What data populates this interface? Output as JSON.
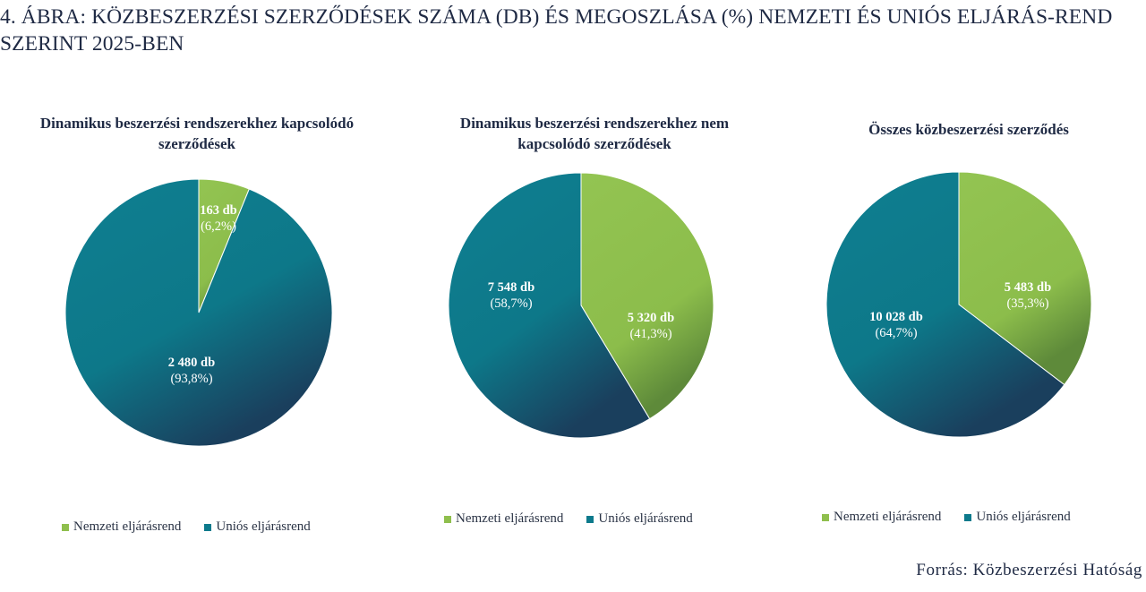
{
  "figure_title": "4. ÁBRA: KÖZBESZERZÉSI SZERZŐDÉSEK SZÁMA (DB) ÉS MEGOSZLÁSA (%) NEMZETI ÉS UNIÓS ELJÁRÁS-REND SZERINT 2025-BEN",
  "source": "Forrás: Közbeszerzési Hatóság",
  "colors": {
    "nemzeti": "#8fbf4d",
    "unios": "#0d7a8c",
    "unios_dark": "#183d5c"
  },
  "chart_data": [
    {
      "type": "pie",
      "title": "Dinamikus beszerzési rendszerekhez kapcsolódó  szerződések",
      "slices": [
        {
          "name": "Nemzeti eljárásrend",
          "value": 163,
          "value_label": "163 db",
          "pct_label": "(6,2%)"
        },
        {
          "name": "Uniós eljárásrend",
          "value": 2480,
          "value_label": "2 480 db",
          "pct_label": "(93,8%)"
        }
      ],
      "legend": [
        "Nemzeti eljárásrend",
        "Uniós eljárásrend"
      ],
      "legend_position": "bottom"
    },
    {
      "type": "pie",
      "title": "Dinamikus beszerzési rendszerekhez nem kapcsolódó szerződések",
      "slices": [
        {
          "name": "Nemzeti eljárásrend",
          "value": 5320,
          "value_label": "5 320 db",
          "pct_label": "(41,3%)"
        },
        {
          "name": "Uniós eljárásrend",
          "value": 7548,
          "value_label": "7 548 db",
          "pct_label": "(58,7%)"
        }
      ],
      "legend": [
        "Nemzeti eljárásrend",
        "Uniós eljárásrend"
      ],
      "legend_position": "bottom"
    },
    {
      "type": "pie",
      "title": "Összes közbeszerzési szerződés",
      "slices": [
        {
          "name": "Nemzeti eljárásrend",
          "value": 5483,
          "value_label": "5 483 db",
          "pct_label": "(35,3%)"
        },
        {
          "name": "Uniós eljárásrend",
          "value": 10028,
          "value_label": "10 028 db",
          "pct_label": "(64,7%)"
        }
      ],
      "legend": [
        "Nemzeti eljárásrend",
        "Uniós eljárásrend"
      ],
      "legend_position": "bottom"
    }
  ]
}
